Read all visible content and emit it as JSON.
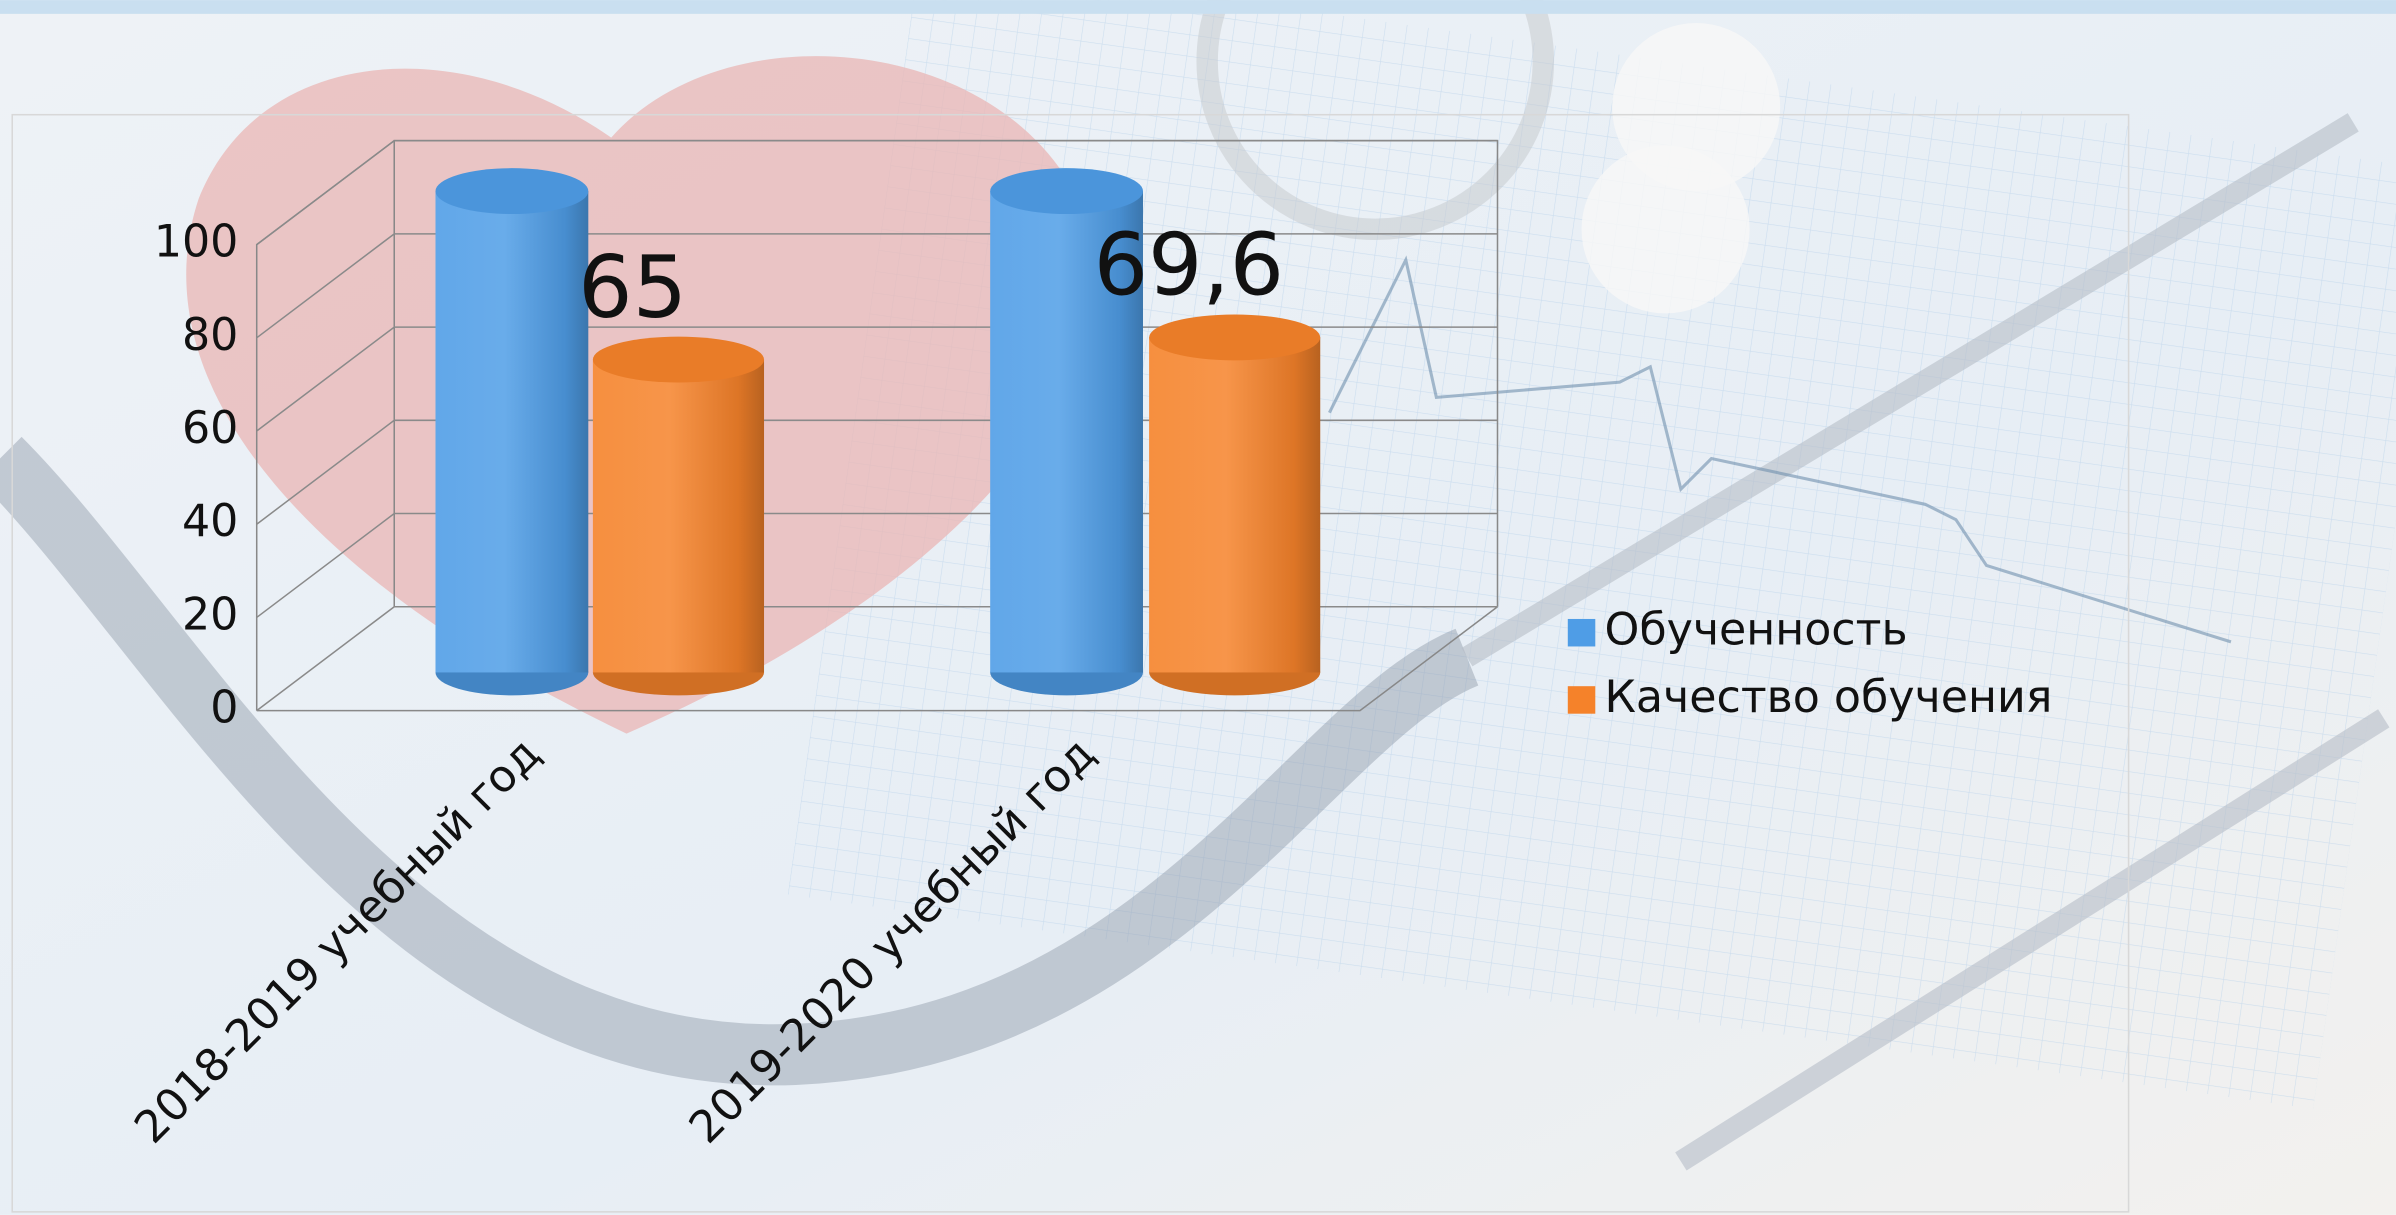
{
  "chart_data": {
    "type": "bar3d",
    "categories": [
      "2018-2019 учебный год",
      "2019-2020 учебный год"
    ],
    "series": [
      {
        "name": "Обученность",
        "color": "#4f9de6",
        "values": [
          100,
          100
        ]
      },
      {
        "name": "Качество обучения",
        "color": "#f5822a",
        "values": [
          65,
          69.6
        ],
        "value_labels": [
          "65",
          "69,6"
        ]
      }
    ],
    "ylim": [
      0,
      100
    ],
    "yticks": [
      0,
      20,
      40,
      60,
      80,
      100
    ],
    "grid": true,
    "legend": "right"
  }
}
